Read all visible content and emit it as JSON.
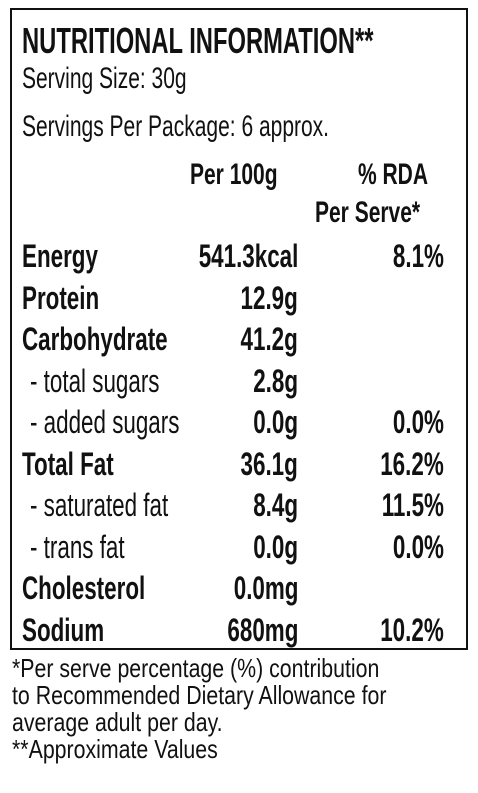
{
  "label": {
    "title": "NUTRITIONAL INFORMATION**",
    "serving_size": "Serving Size: 30g",
    "servings_per_package": "Servings Per Package: 6 approx.",
    "col_per100g": "Per 100g",
    "col_rda_line1": "% RDA",
    "col_rda_line2": "Per Serve*",
    "rows": [
      {
        "name": "Energy",
        "per100g": "541.3kcal",
        "rda": "8.1%"
      },
      {
        "name": "Protein",
        "per100g": "12.9g",
        "rda": ""
      },
      {
        "name": "Carbohydrate",
        "per100g": "41.2g",
        "rda": ""
      },
      {
        "name": "- total sugars",
        "per100g": "2.8g",
        "rda": ""
      },
      {
        "name": "- added sugars",
        "per100g": "0.0g",
        "rda": "0.0%"
      },
      {
        "name": "Total Fat",
        "per100g": "36.1g",
        "rda": "16.2%"
      },
      {
        "name": "- saturated fat",
        "per100g": "8.4g",
        "rda": "11.5%"
      },
      {
        "name": "- trans fat",
        "per100g": "0.0g",
        "rda": "0.0%"
      },
      {
        "name": "Cholesterol",
        "per100g": "0.0mg",
        "rda": ""
      },
      {
        "name": "Sodium",
        "per100g": "680mg",
        "rda": "10.2%"
      }
    ]
  },
  "footnote": {
    "line1": "*Per serve percentage (%) contribution",
    "line2": "to Recommended Dietary Allowance for",
    "line3": "average adult per day.",
    "line4": "**Approximate Values"
  }
}
